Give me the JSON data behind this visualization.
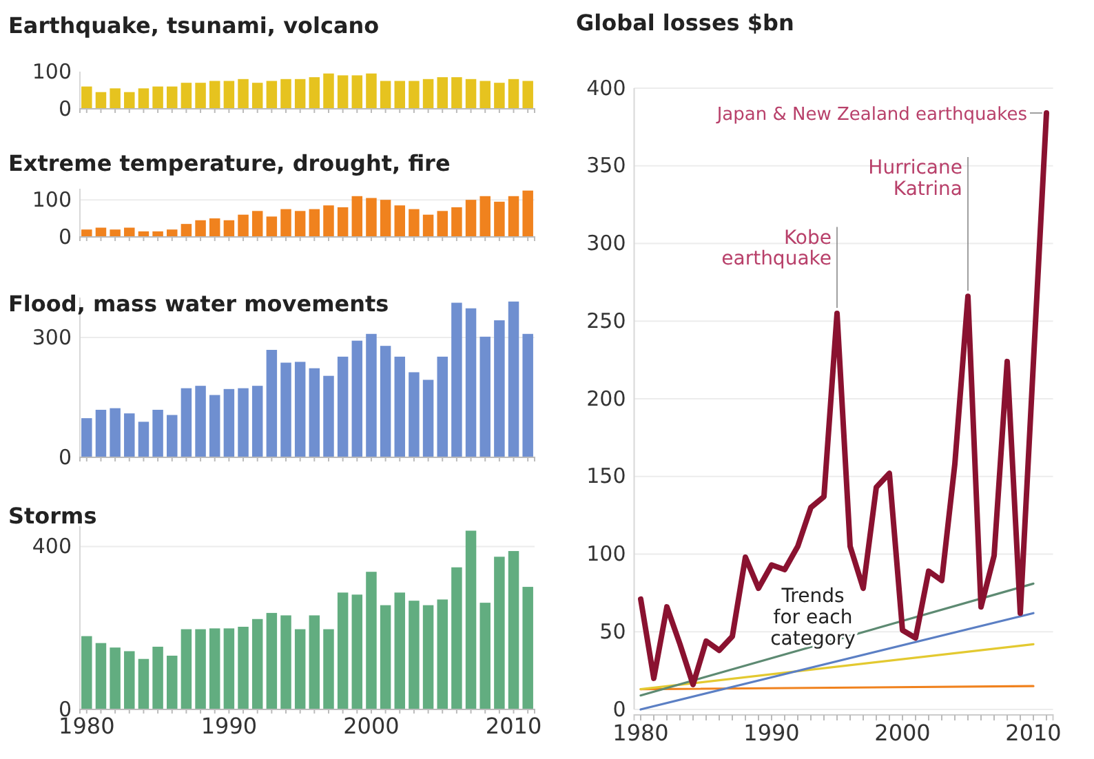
{
  "chart_data": [
    {
      "type": "bar",
      "title": "Earthquake, tsunami, volcano",
      "categories": [
        null,
        null,
        null,
        null,
        null,
        null,
        null,
        null,
        null,
        null,
        null,
        null,
        null,
        null,
        null,
        null,
        null,
        null,
        null,
        null,
        null,
        null,
        null,
        null,
        null,
        null,
        null,
        null,
        null,
        null,
        null,
        null
      ],
      "values": [
        60,
        45,
        55,
        45,
        55,
        60,
        60,
        70,
        70,
        75,
        75,
        80,
        70,
        75,
        80,
        80,
        85,
        95,
        90,
        90,
        95,
        75,
        75,
        75,
        80,
        85,
        85,
        80,
        75,
        70,
        80,
        75
      ],
      "color": "#e6c31f",
      "ylim": [
        0,
        100
      ],
      "yticks": [
        0,
        100
      ]
    },
    {
      "type": "bar",
      "title": "Extreme temperature, drought, fire",
      "categories": [
        null,
        null,
        null,
        null,
        null,
        null,
        null,
        null,
        null,
        null,
        null,
        null,
        null,
        null,
        null,
        null,
        null,
        null,
        null,
        null,
        null,
        null,
        null,
        null,
        null,
        null,
        null,
        null,
        null,
        null,
        null,
        null
      ],
      "values": [
        20,
        25,
        20,
        25,
        15,
        15,
        20,
        35,
        45,
        50,
        45,
        60,
        70,
        55,
        75,
        70,
        75,
        85,
        80,
        110,
        105,
        100,
        85,
        75,
        60,
        70,
        80,
        100,
        110,
        95,
        110,
        125
      ],
      "color": "#f0821e",
      "ylim": [
        0,
        130
      ],
      "yticks": [
        0,
        100
      ],
      "grid": "y"
    },
    {
      "type": "bar",
      "title": "Flood, mass water movements",
      "categories": [
        null,
        null,
        null,
        null,
        null,
        null,
        null,
        null,
        null,
        null,
        null,
        null,
        null,
        null,
        null,
        null,
        null,
        null,
        null,
        null,
        null,
        null,
        null,
        null,
        null,
        null,
        null,
        null,
        null,
        null,
        null,
        null
      ],
      "values": [
        98,
        119,
        123,
        110,
        89,
        119,
        106,
        173,
        179,
        156,
        171,
        173,
        179,
        269,
        237,
        239,
        223,
        204,
        252,
        292,
        309,
        279,
        252,
        213,
        194,
        252,
        387,
        373,
        302,
        343,
        390,
        309
      ],
      "color": "#6f8fd0",
      "ylim": [
        0,
        400
      ],
      "yticks": [
        0,
        300
      ],
      "grid": "y"
    },
    {
      "type": "bar",
      "title": "Storms",
      "categories": [
        "1980",
        null,
        null,
        null,
        null,
        null,
        null,
        null,
        null,
        null,
        "1990",
        null,
        null,
        null,
        null,
        null,
        null,
        null,
        null,
        null,
        "2000",
        null,
        null,
        null,
        null,
        null,
        null,
        null,
        null,
        null,
        "2010",
        null
      ],
      "values": [
        180,
        163,
        152,
        143,
        124,
        154,
        132,
        197,
        197,
        199,
        199,
        203,
        222,
        237,
        231,
        197,
        231,
        197,
        287,
        282,
        338,
        256,
        287,
        267,
        256,
        270,
        349,
        439,
        262,
        375,
        389,
        301
      ],
      "color": "#62ad80",
      "ylim": [
        0,
        450
      ],
      "yticks": [
        0,
        400
      ],
      "grid": "y"
    },
    {
      "type": "line",
      "title": "Global losses $bn",
      "series": [
        {
          "type": "line",
          "color": "#8a1230",
          "x": [
            1980,
            1981,
            1982,
            1983,
            1984,
            1985,
            1986,
            1987,
            1988,
            1989,
            1990,
            1991,
            1992,
            1993,
            1994,
            1995,
            1996,
            1997,
            1998,
            1999,
            2000,
            2001,
            2002,
            2003,
            2004,
            2005,
            2006,
            2007,
            2008,
            2009,
            2011
          ],
          "values": [
            71,
            20,
            66,
            42,
            16,
            44,
            38,
            47,
            98,
            78,
            93,
            90,
            105,
            130,
            137,
            255,
            105,
            78,
            143,
            152,
            51,
            46,
            89,
            83,
            158,
            266,
            66,
            99,
            224,
            62,
            384
          ]
        },
        {
          "type": "line",
          "color": "#5d8a72",
          "x": [
            1980,
            2010
          ],
          "values": [
            9,
            81
          ]
        },
        {
          "type": "line",
          "color": "#5b7fc4",
          "x": [
            1980,
            2010
          ],
          "values": [
            0,
            62
          ]
        },
        {
          "type": "line",
          "color": "#e3c930",
          "x": [
            1980,
            2010
          ],
          "values": [
            13,
            42
          ]
        },
        {
          "type": "line",
          "color": "#f0821e",
          "x": [
            1980,
            2010
          ],
          "values": [
            13,
            15
          ]
        }
      ],
      "xlim": [
        1979.5,
        2011.5
      ],
      "xticks": [
        1980,
        {
          "value": 1981,
          "label": null
        },
        {
          "value": 1982,
          "label": null
        },
        {
          "value": 1983,
          "label": null
        },
        {
          "value": 1984,
          "label": null
        },
        {
          "value": 1985,
          "label": null
        },
        {
          "value": 1986,
          "label": null
        },
        {
          "value": 1987,
          "label": null
        },
        {
          "value": 1988,
          "label": null
        },
        {
          "value": 1989,
          "label": null
        },
        1990,
        {
          "value": 1991,
          "label": null
        },
        {
          "value": 1992,
          "label": null
        },
        {
          "value": 1993,
          "label": null
        },
        {
          "value": 1994,
          "label": null
        },
        {
          "value": 1995,
          "label": null
        },
        {
          "value": 1996,
          "label": null
        },
        {
          "value": 1997,
          "label": null
        },
        {
          "value": 1998,
          "label": null
        },
        {
          "value": 1999,
          "label": null
        },
        2000,
        {
          "value": 2001,
          "label": null
        },
        {
          "value": 2002,
          "label": null
        },
        {
          "value": 2003,
          "label": null
        },
        {
          "value": 2004,
          "label": null
        },
        {
          "value": 2005,
          "label": null
        },
        {
          "value": 2006,
          "label": null
        },
        {
          "value": 2007,
          "label": null
        },
        {
          "value": 2008,
          "label": null
        },
        {
          "value": 2009,
          "label": null
        },
        2010,
        {
          "value": 2011,
          "label": null
        }
      ],
      "ylim": [
        0,
        400
      ],
      "yticks": [
        0,
        50,
        100,
        150,
        200,
        250,
        300,
        350,
        400
      ],
      "grid": "y",
      "annotations": [
        {
          "text": "Kobe earthquake",
          "x": 1995,
          "y": 255
        },
        {
          "text": "Hurricane Katrina",
          "x": 2005,
          "y": 266
        },
        {
          "text": "Japan & New Zealand earthquakes",
          "x": 2011,
          "y": 384
        },
        "Trends for each category"
      ]
    }
  ]
}
